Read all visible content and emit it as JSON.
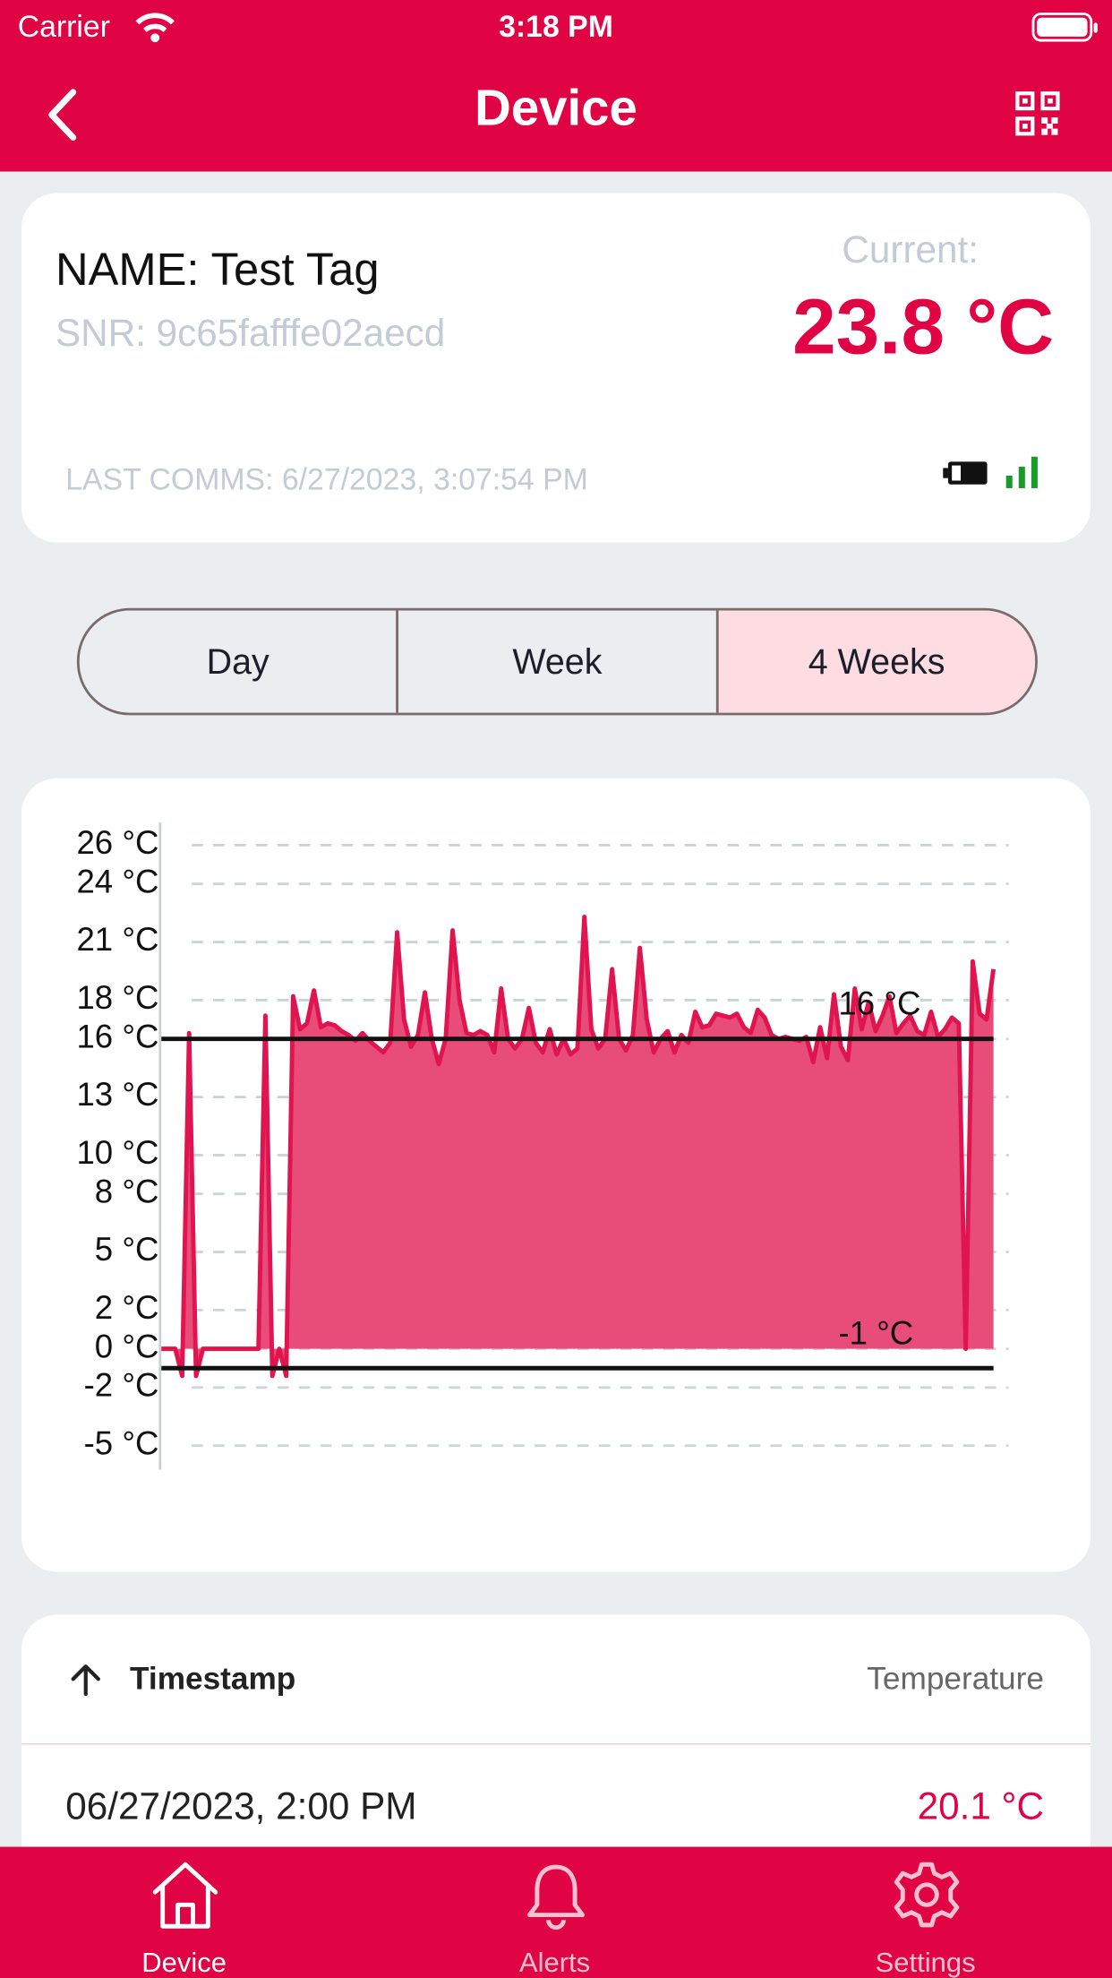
{
  "status_bar": {
    "carrier": "Carrier",
    "time": "3:18 PM"
  },
  "nav": {
    "title": "Device"
  },
  "device": {
    "name": "NAME: Test Tag",
    "snr": "SNR: 9c65fafffe02aecd",
    "current_label": "Current:",
    "current_value": "23.8 °C",
    "last_comms": "LAST COMMS: 6/27/2023, 3:07:54 PM"
  },
  "range_tabs": {
    "options": [
      "Day",
      "Week",
      "4 Weeks"
    ],
    "selected": 2
  },
  "chart_data": {
    "type": "area",
    "series": [
      {
        "color": "#e0154f",
        "fill": "#e84c78",
        "values": [
          0,
          0,
          0,
          -1.4,
          16.3,
          -1.4,
          0,
          0,
          0,
          0,
          0,
          0,
          0,
          0,
          0,
          17.2,
          -1.4,
          0,
          -1.4,
          18.2,
          16.5,
          16.8,
          18.5,
          16.6,
          16.8,
          16.7,
          16.4,
          16.2,
          15.9,
          16.3,
          15.9,
          15.6,
          15.3,
          15.8,
          21.5,
          17,
          15.6,
          16.2,
          18.4,
          16,
          14.7,
          16,
          21.6,
          18,
          16.3,
          16.2,
          16.4,
          16.2,
          15.3,
          18.6,
          16,
          15.5,
          16,
          17.6,
          15.8,
          15.3,
          16.5,
          15.2,
          16,
          15.2,
          15.5,
          22.3,
          16.5,
          15.5,
          16,
          19.6,
          16,
          15.4,
          16.2,
          20.7,
          17,
          15.3,
          16,
          16.4,
          15.3,
          16.2,
          15.8,
          17.4,
          16.6,
          16.7,
          17.3,
          17.2,
          17.1,
          17.3,
          16.6,
          16.3,
          17.5,
          17.1,
          16.2,
          16,
          16.1,
          16,
          15.9,
          16.1,
          14.8,
          16.6,
          15,
          18.3,
          15.6,
          14.9,
          18.6,
          16.5,
          17.9,
          16.4,
          17.2,
          18.2,
          16.3,
          16.8,
          17.2,
          16.4,
          16.2,
          17.4,
          16.1,
          16.5,
          17.1,
          16.8,
          0,
          20,
          17.3,
          17,
          19.6
        ]
      }
    ],
    "ylim": [
      -5,
      26
    ],
    "yticks": [
      {
        "value": -5,
        "label": "-5 °C"
      },
      {
        "value": -2,
        "label": "-2 °C"
      },
      {
        "value": 0,
        "label": "0 °C"
      },
      {
        "value": 2,
        "label": "2 °C"
      },
      {
        "value": 5,
        "label": "5 °C"
      },
      {
        "value": 8,
        "label": "8 °C"
      },
      {
        "value": 10,
        "label": "10 °C"
      },
      {
        "value": 13,
        "label": "13 °C"
      },
      {
        "value": 16,
        "label": "16 °C"
      },
      {
        "value": 18,
        "label": "18 °C"
      },
      {
        "value": 21,
        "label": "21 °C"
      },
      {
        "value": 24,
        "label": "24 °C"
      },
      {
        "value": 26,
        "label": "26 °C"
      }
    ],
    "thresholds": [
      {
        "value": 16,
        "label": "16 °C"
      },
      {
        "value": -1,
        "label": "-1 °C"
      }
    ],
    "grid": true
  },
  "table": {
    "columns": [
      "Timestamp",
      "Temperature"
    ],
    "rows": [
      [
        "06/27/2023, 2:00 PM",
        "20.1 °C"
      ]
    ]
  },
  "tab_bar": {
    "items": [
      "Device",
      "Alerts",
      "Settings"
    ],
    "selected": 0
  }
}
